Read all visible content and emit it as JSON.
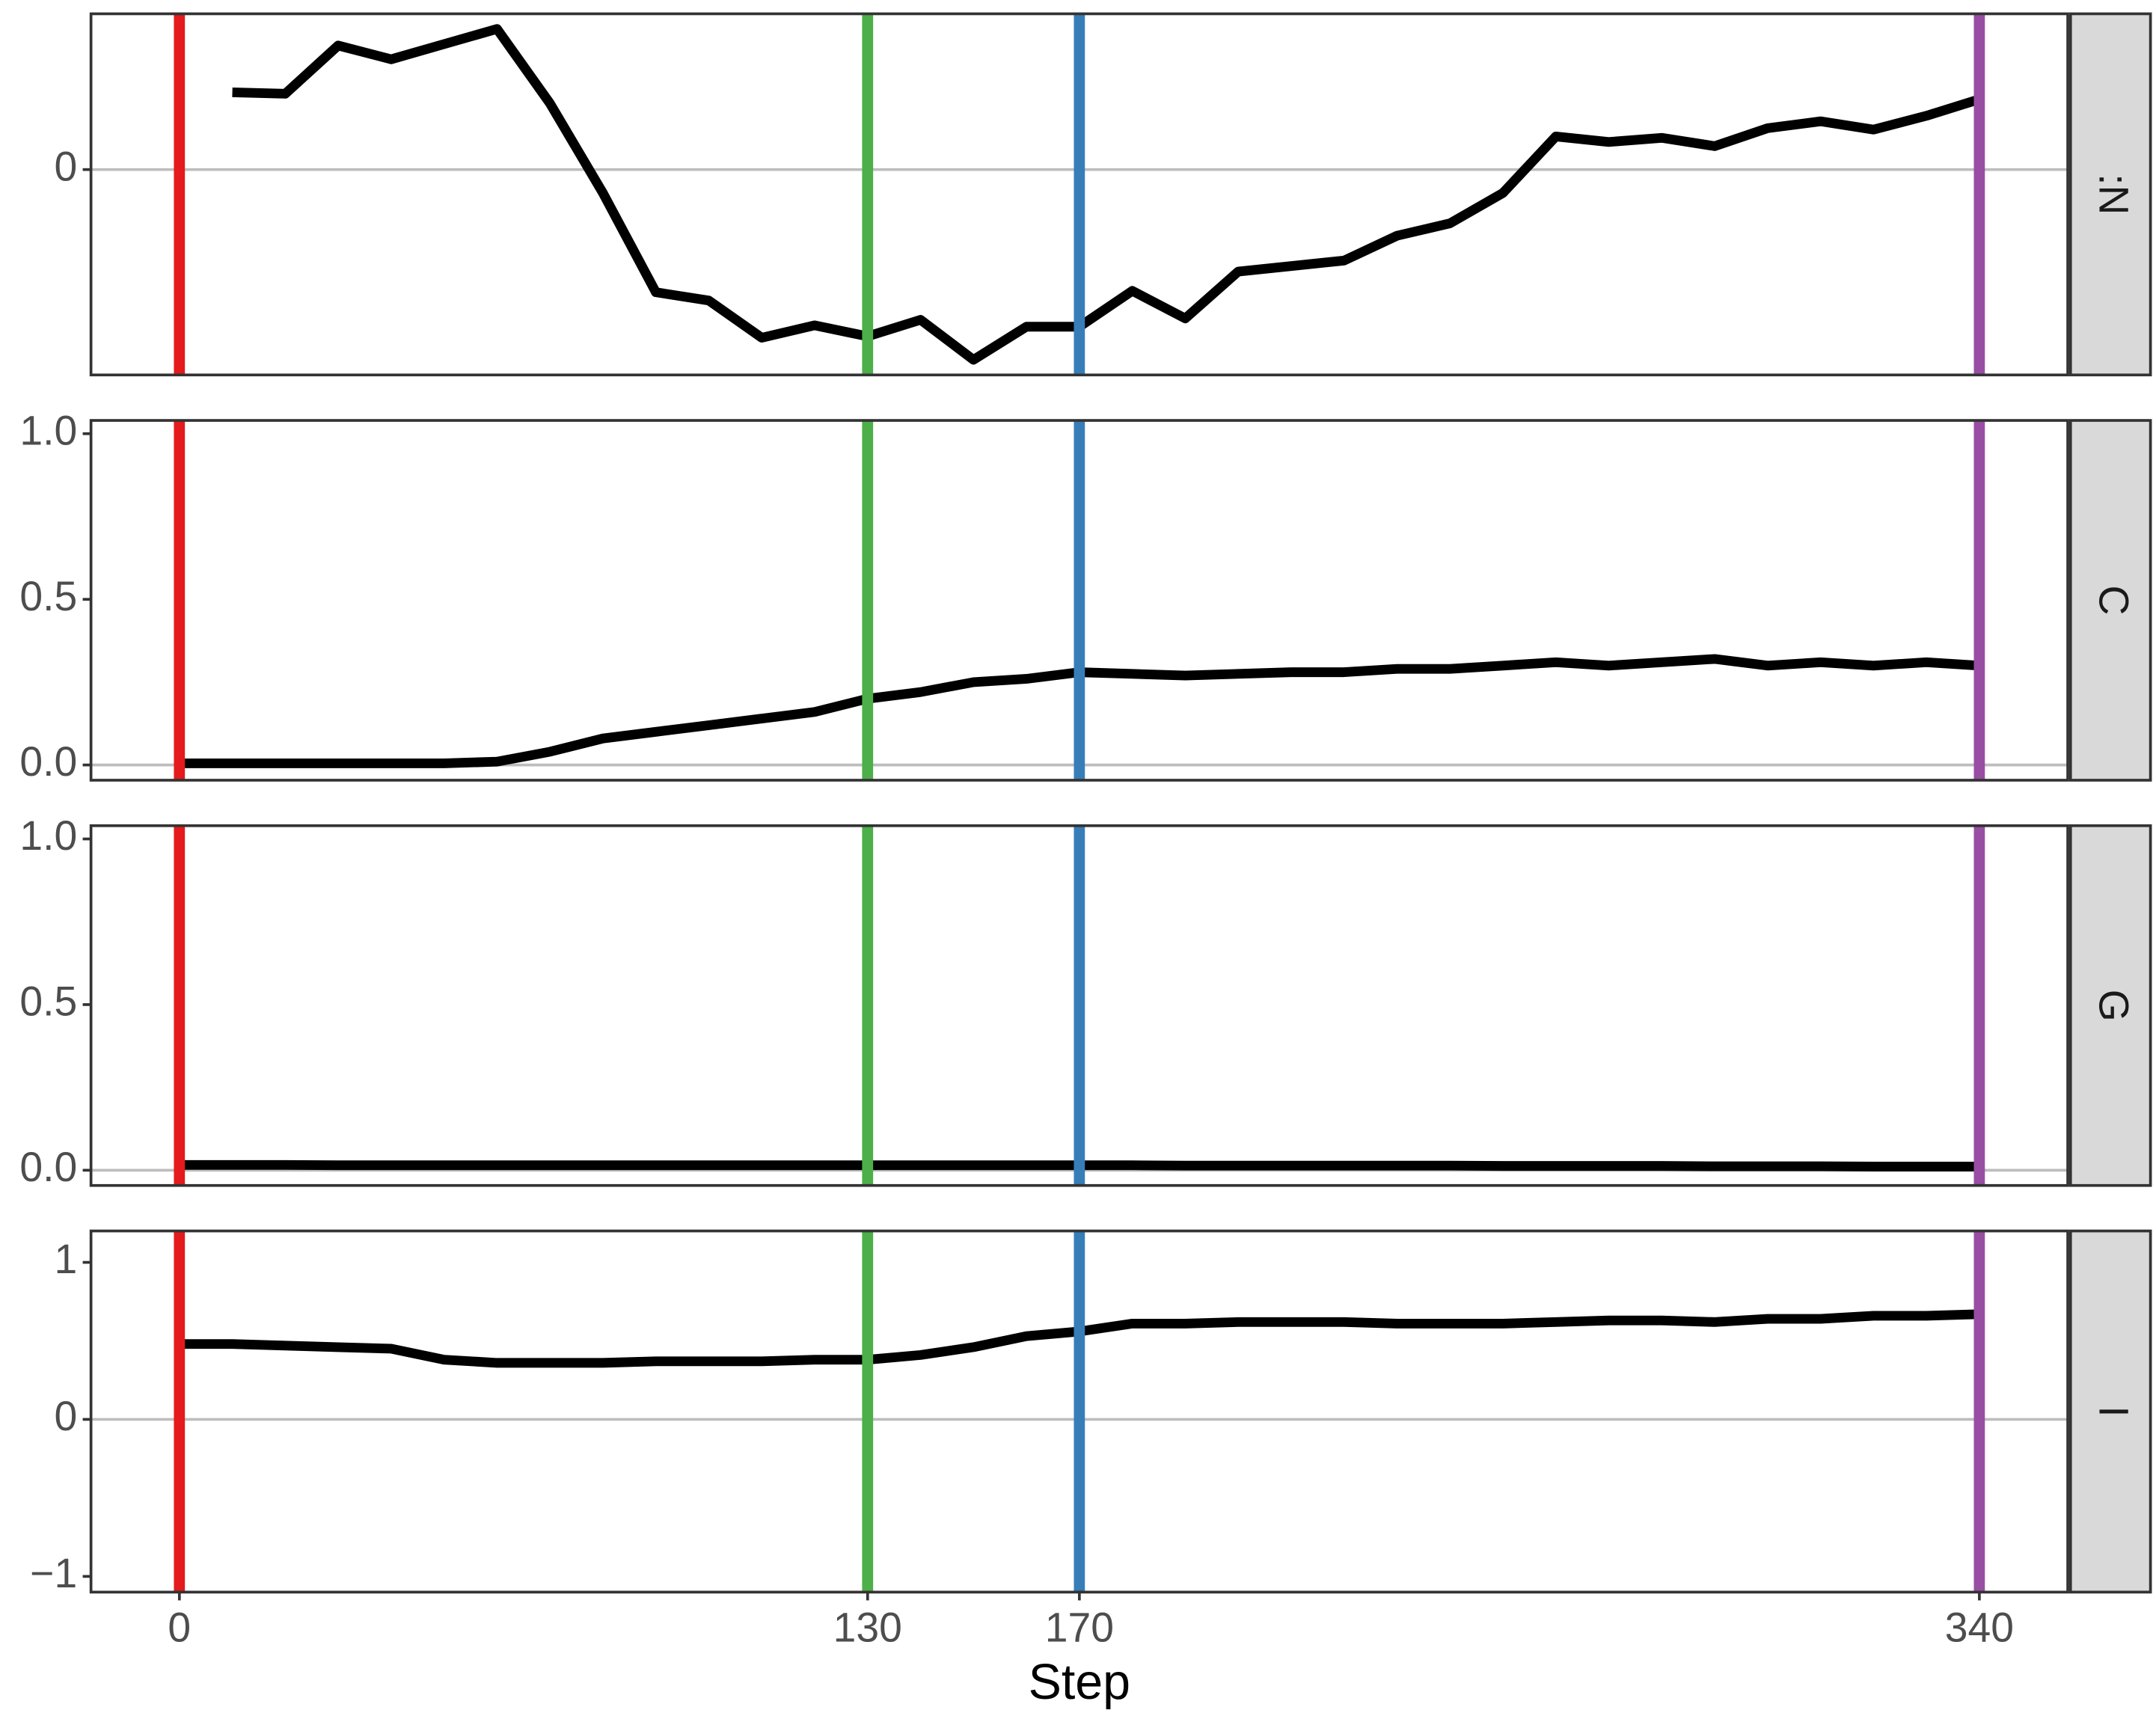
{
  "chart_data": [
    {
      "type": "line",
      "strip": ":N",
      "x": [
        10,
        20,
        30,
        40,
        50,
        60,
        70,
        80,
        90,
        100,
        110,
        120,
        130,
        140,
        150,
        160,
        170,
        180,
        190,
        200,
        210,
        220,
        230,
        240,
        250,
        260,
        270,
        280,
        290,
        300,
        310,
        320,
        330,
        340
      ],
      "series": [
        {
          "color": "#000000",
          "values": [
            0.56,
            0.55,
            0.9,
            0.8,
            0.91,
            1.02,
            0.48,
            -0.17,
            -0.89,
            -0.95,
            -1.22,
            -1.13,
            -1.21,
            -1.09,
            -1.38,
            -1.14,
            -1.14,
            -0.88,
            -1.08,
            -0.74,
            -0.7,
            -0.66,
            -0.48,
            -0.39,
            -0.17,
            0.24,
            0.2,
            0.23,
            0.17,
            0.3,
            0.35,
            0.29,
            0.39,
            0.51
          ]
        }
      ],
      "xlim": [
        -16.7,
        356.7
      ],
      "ylim": [
        -1.49,
        1.13
      ],
      "yticks": [
        0
      ],
      "vlines": {
        "x": [
          0,
          130,
          170,
          340
        ],
        "colors": [
          "#e41a1c",
          "#4daf4a",
          "#377eb8",
          "#984ea3"
        ]
      }
    },
    {
      "type": "line",
      "strip": "C",
      "x": [
        0,
        10,
        20,
        30,
        40,
        50,
        60,
        70,
        80,
        90,
        100,
        110,
        120,
        130,
        140,
        150,
        160,
        170,
        180,
        190,
        200,
        210,
        220,
        230,
        240,
        250,
        260,
        270,
        280,
        290,
        300,
        310,
        320,
        330,
        340
      ],
      "series": [
        {
          "color": "#000000",
          "values": [
            0.005,
            0.005,
            0.005,
            0.005,
            0.005,
            0.005,
            0.01,
            0.04,
            0.08,
            0.1,
            0.12,
            0.14,
            0.16,
            0.2,
            0.22,
            0.25,
            0.26,
            0.28,
            0.275,
            0.27,
            0.275,
            0.28,
            0.28,
            0.29,
            0.29,
            0.3,
            0.31,
            0.3,
            0.31,
            0.32,
            0.3,
            0.31,
            0.3,
            0.31,
            0.3
          ]
        }
      ],
      "xlim": [
        -16.7,
        356.7
      ],
      "ylim": [
        -0.046,
        1.04
      ],
      "yticks": [
        {
          "value": 0,
          "label": "0.0"
        },
        0.5,
        {
          "value": 1,
          "label": "1.0"
        }
      ],
      "vlines": {
        "x": [
          0,
          130,
          170,
          340
        ],
        "colors": [
          "#e41a1c",
          "#4daf4a",
          "#377eb8",
          "#984ea3"
        ]
      }
    },
    {
      "type": "line",
      "strip": "G",
      "x": [
        0,
        10,
        20,
        30,
        40,
        50,
        60,
        70,
        80,
        90,
        100,
        110,
        120,
        130,
        140,
        150,
        160,
        170,
        180,
        190,
        200,
        210,
        220,
        230,
        240,
        250,
        260,
        270,
        280,
        290,
        300,
        310,
        320,
        330,
        340
      ],
      "series": [
        {
          "color": "#000000",
          "values": [
            0.016,
            0.016,
            0.016,
            0.015,
            0.015,
            0.015,
            0.015,
            0.015,
            0.015,
            0.015,
            0.015,
            0.015,
            0.015,
            0.015,
            0.015,
            0.015,
            0.015,
            0.015,
            0.015,
            0.014,
            0.014,
            0.014,
            0.014,
            0.014,
            0.014,
            0.013,
            0.013,
            0.013,
            0.013,
            0.012,
            0.012,
            0.012,
            0.011,
            0.011,
            0.011
          ]
        }
      ],
      "xlim": [
        -16.7,
        356.7
      ],
      "ylim": [
        -0.046,
        1.04
      ],
      "yticks": [
        {
          "value": 0,
          "label": "0.0"
        },
        0.5,
        {
          "value": 1,
          "label": "1.0"
        }
      ],
      "vlines": {
        "x": [
          0,
          130,
          170,
          340
        ],
        "colors": [
          "#e41a1c",
          "#4daf4a",
          "#377eb8",
          "#984ea3"
        ]
      }
    },
    {
      "type": "line",
      "strip": "I",
      "x": [
        0,
        10,
        20,
        30,
        40,
        50,
        60,
        70,
        80,
        90,
        100,
        110,
        120,
        130,
        140,
        150,
        160,
        170,
        180,
        190,
        200,
        210,
        220,
        230,
        240,
        250,
        260,
        270,
        280,
        290,
        300,
        310,
        320,
        330,
        340
      ],
      "series": [
        {
          "color": "#000000",
          "values": [
            0.48,
            0.48,
            0.47,
            0.46,
            0.45,
            0.38,
            0.36,
            0.36,
            0.36,
            0.37,
            0.37,
            0.37,
            0.38,
            0.38,
            0.41,
            0.46,
            0.53,
            0.56,
            0.61,
            0.61,
            0.62,
            0.62,
            0.62,
            0.61,
            0.61,
            0.61,
            0.62,
            0.63,
            0.63,
            0.62,
            0.64,
            0.64,
            0.66,
            0.66,
            0.67
          ]
        }
      ],
      "xlim": [
        -16.7,
        356.7
      ],
      "ylim": [
        -1.1,
        1.2
      ],
      "yticks": [
        {
          "value": -1,
          "label": "−1"
        },
        0,
        1
      ],
      "vlines": {
        "x": [
          0,
          130,
          170,
          340
        ],
        "colors": [
          "#e41a1c",
          "#4daf4a",
          "#377eb8",
          "#984ea3"
        ]
      },
      "xticks": [
        0,
        130,
        170,
        340
      ],
      "x_label": "Step"
    }
  ]
}
